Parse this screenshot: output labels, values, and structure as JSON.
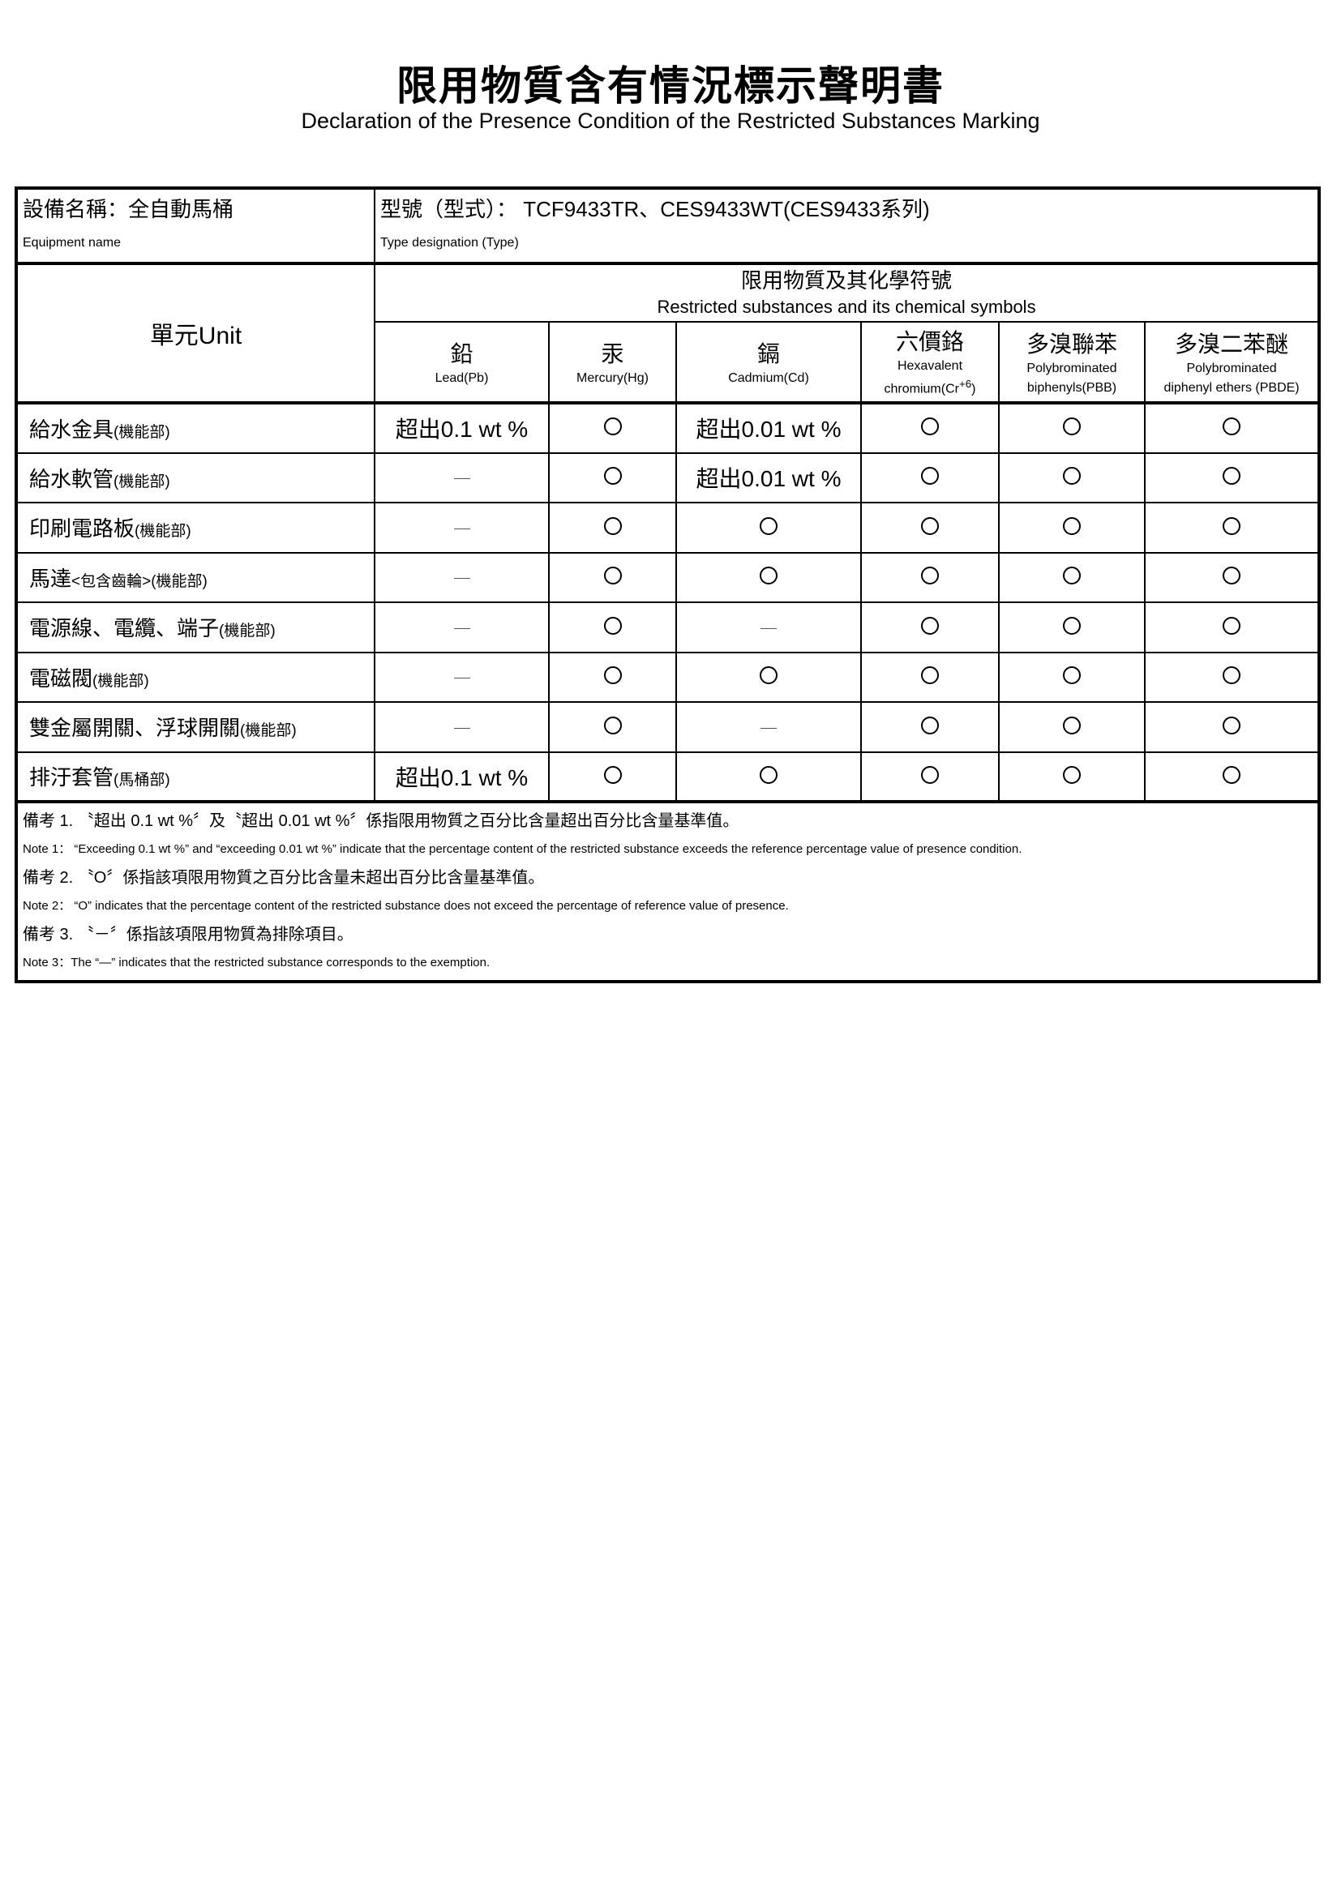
{
  "title": "限用物質含有情況標示聲明書",
  "subtitle": "Declaration of the Presence Condition of the Restricted Substances Marking",
  "equipment": {
    "label_zh": "設備名稱：全自動馬桶",
    "label_en": "Equipment name"
  },
  "type": {
    "label_zh": "型號（型式）： TCF9433TR、CES9433WT(CES9433系列)",
    "label_en": "Type designation (Type)"
  },
  "unit_header": "單元Unit",
  "substances_header": {
    "zh": "限用物質及其化學符號",
    "en": "Restricted substances and its chemical symbols"
  },
  "columns": [
    {
      "zh": "鉛",
      "en": "Lead(Pb)"
    },
    {
      "zh": "汞",
      "en": "Mercury(Hg)"
    },
    {
      "zh": "鎘",
      "en": "Cadmium(Cd)"
    },
    {
      "zh": "六價鉻",
      "en": "Hexavalent",
      "en2": "chromium(Cr",
      "sup": "+6",
      "en3": ")"
    },
    {
      "zh": "多溴聯苯",
      "en": "Polybrominated",
      "en2": "biphenyls(PBB)"
    },
    {
      "zh": "多溴二苯醚",
      "en": "Polybrominated",
      "en2": "diphenyl ethers (PBDE)"
    }
  ],
  "rows": [
    {
      "part": "給水金具",
      "note": "(機能部)",
      "values": [
        "超出0.1 wt %",
        "O",
        "超出0.01 wt %",
        "O",
        "O",
        "O"
      ]
    },
    {
      "part": "給水軟管",
      "note": "(機能部)",
      "values": [
        "—",
        "O",
        "超出0.01 wt %",
        "O",
        "O",
        "O"
      ]
    },
    {
      "part": "印刷電路板",
      "note": "(機能部)",
      "values": [
        "—",
        "O",
        "O",
        "O",
        "O",
        "O"
      ]
    },
    {
      "part": "馬達",
      "note": "<包含齒輪>(機能部)",
      "values": [
        "—",
        "O",
        "O",
        "O",
        "O",
        "O"
      ]
    },
    {
      "part": "電源線、電纜、端子",
      "note": "(機能部)",
      "values": [
        "—",
        "O",
        "—",
        "O",
        "O",
        "O"
      ]
    },
    {
      "part": "電磁閥",
      "note": "(機能部)",
      "values": [
        "—",
        "O",
        "O",
        "O",
        "O",
        "O"
      ]
    },
    {
      "part": "雙金屬開關、浮球開關",
      "note": "(機能部)",
      "values": [
        "—",
        "O",
        "—",
        "O",
        "O",
        "O"
      ]
    },
    {
      "part": "排汙套管",
      "note": "(馬桶部)",
      "values": [
        "超出0.1 wt %",
        "O",
        "O",
        "O",
        "O",
        "O"
      ]
    }
  ],
  "notes": [
    {
      "zh": "備考 1. 〝超出 0.1 wt %〞及〝超出 0.01 wt %〞係指限用物質之百分比含量超出百分比含量基準值。",
      "en": "Note 1： “Exceeding 0.1 wt %” and “exceeding 0.01 wt %” indicate that the percentage content of the restricted substance exceeds the reference percentage value of presence condition."
    },
    {
      "zh": "備考 2. 〝O〞係指該項限用物質之百分比含量未超出百分比含量基準值。",
      "en": "Note 2： “O” indicates that the percentage content of the restricted substance does not exceed the percentage of reference value of presence."
    },
    {
      "zh": "備考 3. 〝－〞係指該項限用物質為排除項目。",
      "en": "Note 3：The “—” indicates that the restricted substance corresponds to the exemption."
    }
  ]
}
